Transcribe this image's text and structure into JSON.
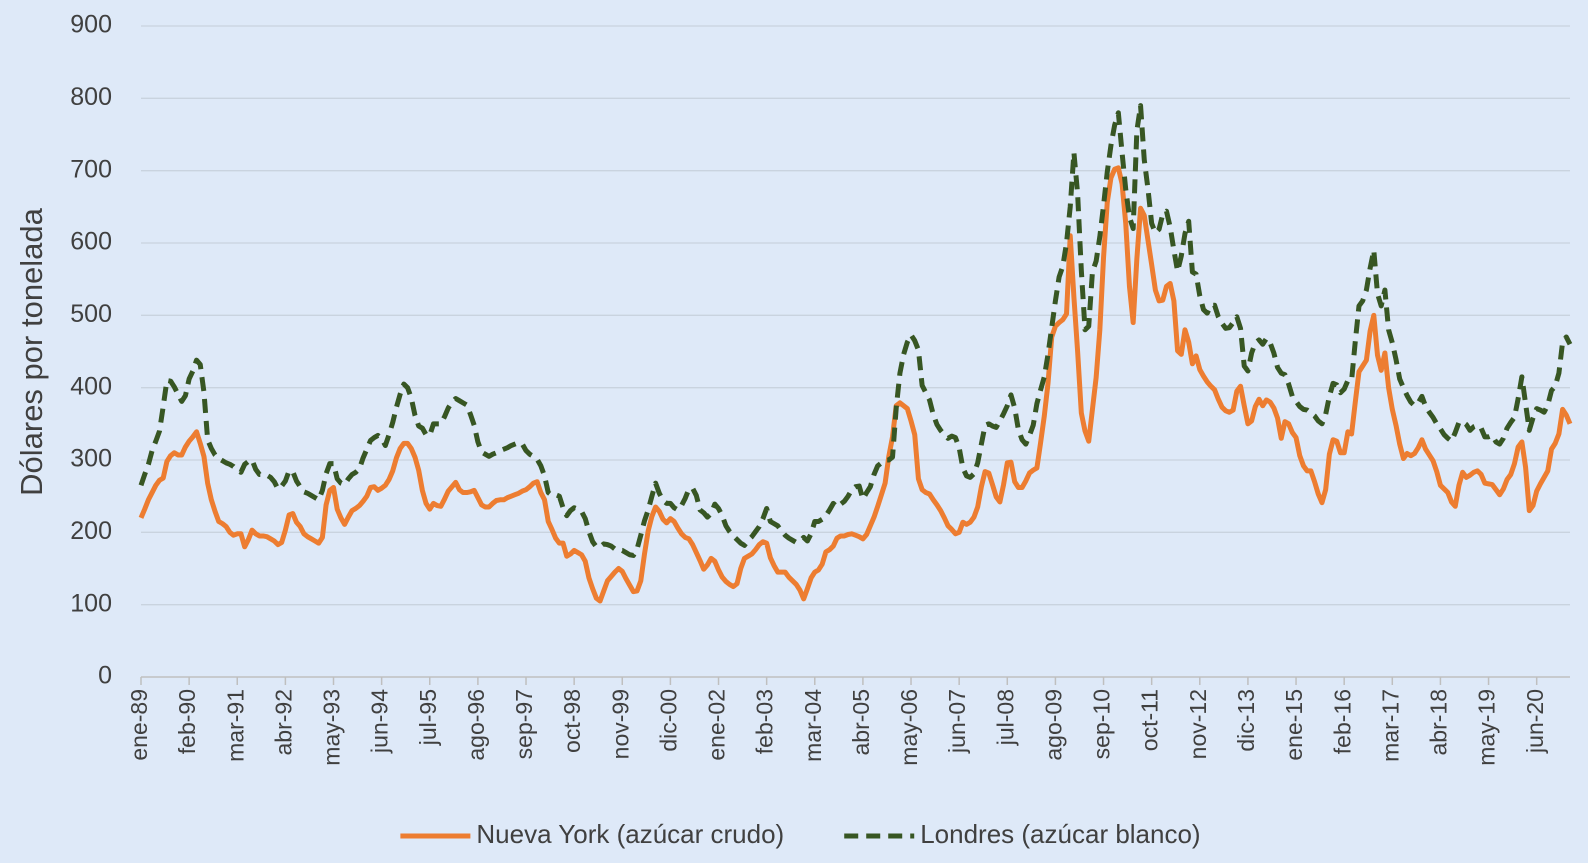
{
  "chart_data": {
    "type": "line",
    "y_label": "Dólares por tonelada",
    "ylim": [
      0,
      900
    ],
    "yticks": [
      0,
      100,
      200,
      300,
      400,
      500,
      600,
      700,
      800,
      900
    ],
    "grid": true,
    "legend": "bottom",
    "categories": [
      "ene-89",
      null,
      null,
      null,
      null,
      null,
      null,
      null,
      null,
      null,
      null,
      null,
      null,
      "feb-90",
      null,
      null,
      null,
      null,
      null,
      null,
      null,
      null,
      null,
      null,
      null,
      null,
      "mar-91",
      null,
      null,
      null,
      null,
      null,
      null,
      null,
      null,
      null,
      null,
      null,
      null,
      "abr-92",
      null,
      null,
      null,
      null,
      null,
      null,
      null,
      null,
      null,
      null,
      null,
      null,
      "may-93",
      null,
      null,
      null,
      null,
      null,
      null,
      null,
      null,
      null,
      null,
      null,
      null,
      "jun-94",
      null,
      null,
      null,
      null,
      null,
      null,
      null,
      null,
      null,
      null,
      null,
      null,
      "jul-95",
      null,
      null,
      null,
      null,
      null,
      null,
      null,
      null,
      null,
      null,
      null,
      null,
      "ago-96",
      null,
      null,
      null,
      null,
      null,
      null,
      null,
      null,
      null,
      null,
      null,
      null,
      "sep-97",
      null,
      null,
      null,
      null,
      null,
      null,
      null,
      null,
      null,
      null,
      null,
      null,
      "oct-98",
      null,
      null,
      null,
      null,
      null,
      null,
      null,
      null,
      null,
      null,
      null,
      null,
      "nov-99",
      null,
      null,
      null,
      null,
      null,
      null,
      null,
      null,
      null,
      null,
      null,
      null,
      "dic-00",
      null,
      null,
      null,
      null,
      null,
      null,
      null,
      null,
      null,
      null,
      null,
      null,
      "ene-02",
      null,
      null,
      null,
      null,
      null,
      null,
      null,
      null,
      null,
      null,
      null,
      null,
      "feb-03",
      null,
      null,
      null,
      null,
      null,
      null,
      null,
      null,
      null,
      null,
      null,
      null,
      "mar-04",
      null,
      null,
      null,
      null,
      null,
      null,
      null,
      null,
      null,
      null,
      null,
      null,
      "abr-05",
      null,
      null,
      null,
      null,
      null,
      null,
      null,
      null,
      null,
      null,
      null,
      null,
      "may-06",
      null,
      null,
      null,
      null,
      null,
      null,
      null,
      null,
      null,
      null,
      null,
      null,
      "jun-07",
      null,
      null,
      null,
      null,
      null,
      null,
      null,
      null,
      null,
      null,
      null,
      null,
      "jul-08",
      null,
      null,
      null,
      null,
      null,
      null,
      null,
      null,
      null,
      null,
      null,
      null,
      "ago-09",
      null,
      null,
      null,
      null,
      null,
      null,
      null,
      null,
      null,
      null,
      null,
      null,
      "sep-10",
      null,
      null,
      null,
      null,
      null,
      null,
      null,
      null,
      null,
      null,
      null,
      null,
      "oct-11",
      null,
      null,
      null,
      null,
      null,
      null,
      null,
      null,
      null,
      null,
      null,
      null,
      "nov-12",
      null,
      null,
      null,
      null,
      null,
      null,
      null,
      null,
      null,
      null,
      null,
      null,
      "dic-13",
      null,
      null,
      null,
      null,
      null,
      null,
      null,
      null,
      null,
      null,
      null,
      null,
      "ene-15",
      null,
      null,
      null,
      null,
      null,
      null,
      null,
      null,
      null,
      null,
      null,
      null,
      "feb-16",
      null,
      null,
      null,
      null,
      null,
      null,
      null,
      null,
      null,
      null,
      null,
      null,
      "mar-17",
      null,
      null,
      null,
      null,
      null,
      null,
      null,
      null,
      null,
      null,
      null,
      null,
      "abr-18",
      null,
      null,
      null,
      null,
      null,
      null,
      null,
      null,
      null,
      null,
      null,
      null,
      "may-19",
      null,
      null,
      null,
      null,
      null,
      null,
      null,
      null,
      null,
      null,
      null,
      null,
      "jun-20",
      null,
      null,
      null,
      null,
      null,
      null,
      null,
      null,
      null
    ],
    "series": [
      {
        "name": "Nueva York (azúcar crudo)",
        "color": "#ed7d31",
        "line_style": "solid",
        "values": [
          220,
          232,
          245,
          255,
          265,
          272,
          275,
          298,
          306,
          310,
          307,
          307,
          318,
          326,
          332,
          339,
          323,
          305,
          268,
          245,
          229,
          215,
          212,
          208,
          200,
          196,
          198,
          198,
          180,
          190,
          203,
          198,
          195,
          195,
          194,
          191,
          188,
          183,
          186,
          203,
          224,
          226,
          214,
          208,
          198,
          194,
          191,
          188,
          185,
          193,
          238,
          258,
          262,
          232,
          220,
          211,
          221,
          230,
          233,
          237,
          243,
          250,
          262,
          263,
          258,
          261,
          265,
          273,
          285,
          303,
          316,
          323,
          323,
          316,
          304,
          286,
          258,
          240,
          232,
          240,
          237,
          236,
          246,
          257,
          263,
          269,
          259,
          255,
          255,
          256,
          258,
          248,
          238,
          235,
          235,
          240,
          244,
          245,
          245,
          248,
          250,
          252,
          254,
          257,
          259,
          263,
          268,
          270,
          255,
          245,
          215,
          204,
          192,
          185,
          185,
          167,
          170,
          175,
          172,
          169,
          160,
          137,
          122,
          109,
          105,
          119,
          133,
          139,
          145,
          150,
          146,
          136,
          127,
          118,
          119,
          133,
          170,
          202,
          222,
          235,
          229,
          218,
          213,
          219,
          215,
          206,
          198,
          193,
          191,
          183,
          172,
          161,
          149,
          155,
          164,
          160,
          148,
          138,
          132,
          128,
          125,
          129,
          150,
          164,
          167,
          170,
          176,
          183,
          187,
          185,
          165,
          154,
          145,
          145,
          145,
          138,
          133,
          128,
          120,
          108,
          122,
          137,
          145,
          148,
          156,
          173,
          176,
          181,
          192,
          195,
          195,
          197,
          198,
          196,
          194,
          191,
          197,
          209,
          221,
          236,
          252,
          268,
          305,
          332,
          375,
          379,
          375,
          371,
          354,
          335,
          274,
          259,
          255,
          253,
          245,
          238,
          230,
          220,
          209,
          204,
          198,
          200,
          214,
          211,
          214,
          221,
          235,
          263,
          284,
          282,
          266,
          249,
          242,
          266,
          296,
          297,
          270,
          262,
          262,
          271,
          282,
          286,
          289,
          324,
          361,
          406,
          470,
          485,
          490,
          494,
          502,
          610,
          525,
          450,
          365,
          340,
          326,
          370,
          414,
          480,
          580,
          656,
          690,
          702,
          704,
          682,
          627,
          540,
          490,
          578,
          648,
          638,
          604,
          570,
          535,
          520,
          521,
          540,
          544,
          520,
          451,
          446,
          480,
          463,
          433,
          444,
          425,
          416,
          408,
          402,
          397,
          384,
          373,
          368,
          366,
          369,
          395,
          402,
          375,
          350,
          354,
          374,
          384,
          375,
          383,
          380,
          372,
          358,
          330,
          353,
          350,
          338,
          331,
          306,
          292,
          285,
          285,
          270,
          253,
          241,
          259,
          308,
          328,
          326,
          310,
          310,
          339,
          336,
          380,
          422,
          430,
          438,
          478,
          500,
          445,
          424,
          448,
          400,
          370,
          348,
          322,
          302,
          309,
          306,
          309,
          317,
          328,
          315,
          307,
          299,
          284,
          265,
          260,
          255,
          242,
          236,
          265,
          283,
          276,
          279,
          283,
          285,
          280,
          268,
          267,
          266,
          259,
          252,
          260,
          273,
          280,
          295,
          318,
          325,
          290,
          230,
          237,
          257,
          267,
          276,
          285,
          315,
          323,
          336,
          370,
          362,
          350
        ]
      },
      {
        "name": "Londres (azúcar blanco)",
        "color": "#375623",
        "line_style": "dashed",
        "values": [
          265,
          280,
          294,
          313,
          326,
          340,
          374,
          410,
          409,
          401,
          391,
          381,
          389,
          412,
          423,
          438,
          432,
          394,
          328,
          316,
          307,
          302,
          299,
          296,
          294,
          291,
          286,
          283,
          294,
          298,
          300,
          287,
          280,
          280,
          279,
          276,
          270,
          260,
          264,
          271,
          285,
          284,
          271,
          263,
          256,
          254,
          251,
          248,
          245,
          258,
          281,
          295,
          295,
          274,
          268,
          266,
          274,
          280,
          283,
          288,
          303,
          315,
          327,
          331,
          334,
          330,
          320,
          335,
          352,
          373,
          391,
          405,
          400,
          386,
          362,
          347,
          344,
          335,
          334,
          350,
          350,
          350,
          360,
          372,
          380,
          385,
          382,
          379,
          376,
          363,
          348,
          325,
          311,
          308,
          305,
          308,
          310,
          313,
          315,
          317,
          320,
          322,
          324,
          322,
          313,
          308,
          305,
          301,
          292,
          278,
          255,
          251,
          252,
          250,
          234,
          223,
          230,
          234,
          232,
          229,
          219,
          201,
          187,
          180,
          180,
          184,
          183,
          181,
          177,
          175,
          175,
          172,
          169,
          168,
          177,
          196,
          216,
          231,
          250,
          268,
          254,
          244,
          240,
          240,
          234,
          231,
          237,
          247,
          260,
          261,
          251,
          231,
          227,
          221,
          226,
          239,
          233,
          223,
          209,
          201,
          195,
          190,
          185,
          182,
          189,
          194,
          201,
          208,
          219,
          233,
          215,
          212,
          209,
          202,
          196,
          192,
          189,
          186,
          188,
          193,
          188,
          198,
          215,
          215,
          218,
          223,
          231,
          240,
          235,
          239,
          243,
          250,
          259,
          263,
          264,
          246,
          255,
          263,
          280,
          292,
          296,
          300,
          300,
          304,
          372,
          420,
          446,
          463,
          473,
          465,
          452,
          403,
          393,
          383,
          363,
          349,
          341,
          335,
          330,
          333,
          331,
          317,
          289,
          278,
          276,
          281,
          296,
          322,
          348,
          350,
          347,
          345,
          354,
          364,
          375,
          390,
          372,
          342,
          328,
          322,
          334,
          348,
          378,
          397,
          415,
          446,
          483,
          520,
          553,
          568,
          600,
          650,
          725,
          668,
          562,
          480,
          485,
          560,
          575,
          609,
          652,
          698,
          735,
          763,
          780,
          725,
          674,
          636,
          620,
          755,
          790,
          715,
          675,
          627,
          614,
          619,
          640,
          644,
          622,
          590,
          561,
          582,
          613,
          630,
          560,
          557,
          527,
          508,
          503,
          514,
          514,
          498,
          489,
          482,
          483,
          490,
          498,
          482,
          430,
          423,
          448,
          462,
          466,
          460,
          468,
          462,
          448,
          428,
          420,
          418,
          405,
          388,
          381,
          374,
          370,
          369,
          365,
          361,
          354,
          350,
          363,
          388,
          406,
          404,
          393,
          398,
          410,
          410,
          464,
          513,
          520,
          535,
          565,
          590,
          530,
          513,
          535,
          480,
          462,
          439,
          412,
          400,
          389,
          380,
          375,
          379,
          388,
          374,
          366,
          359,
          350,
          343,
          335,
          330,
          326,
          338,
          352,
          353,
          349,
          341,
          346,
          348,
          344,
          332,
          332,
          334,
          325,
          322,
          330,
          344,
          352,
          359,
          385,
          415,
          378,
          341,
          358,
          371,
          369,
          366,
          376,
          396,
          402,
          420,
          463,
          470,
          460
        ]
      }
    ]
  }
}
